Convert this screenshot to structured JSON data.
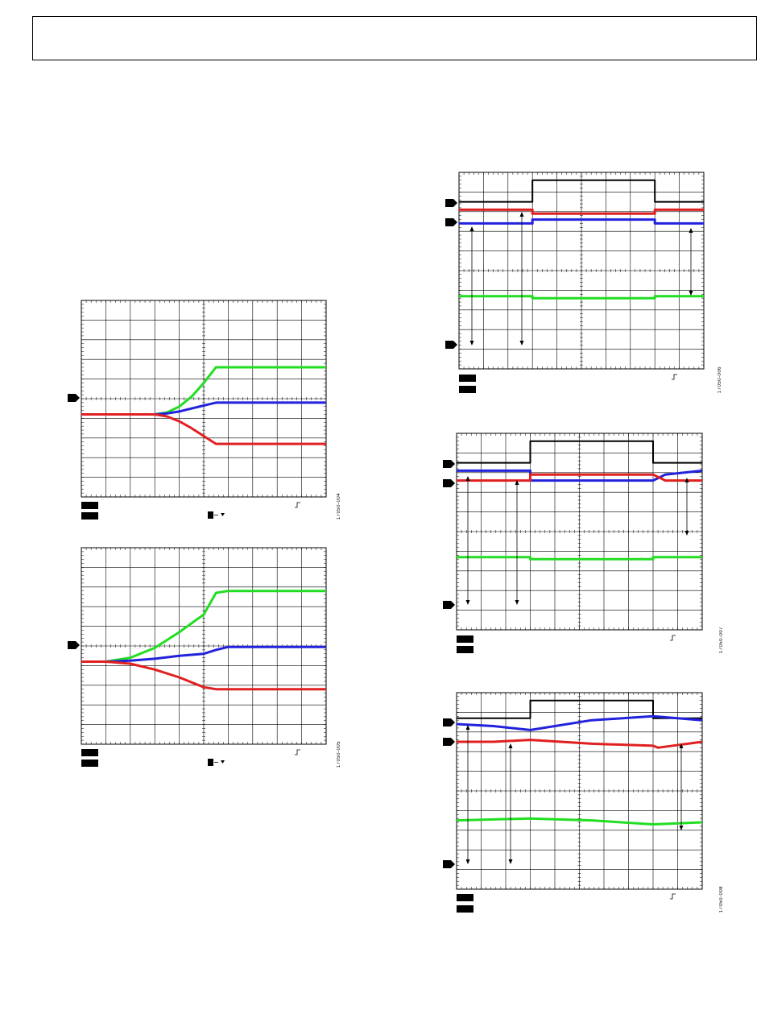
{
  "page": {
    "figure_ids": [
      "17050-004",
      "17050-005",
      "17050-006",
      "17050-007",
      "17050-008"
    ]
  },
  "colors": {
    "green": "#22dd22",
    "blue": "#2222dd",
    "red": "#e02020",
    "black": "#000000",
    "grid": "#000000"
  },
  "chart_data": [
    {
      "type": "line",
      "title": "",
      "grid": true,
      "x": [
        0,
        1,
        2,
        3,
        3.5,
        4,
        4.5,
        5,
        5.5,
        6,
        7,
        8,
        9,
        10
      ],
      "ylim": [
        0,
        10
      ],
      "xlim": [
        0,
        10
      ],
      "series": [
        {
          "color": "green",
          "values": [
            4.2,
            4.2,
            4.2,
            4.2,
            4.3,
            4.6,
            5.1,
            5.8,
            6.6,
            6.6,
            6.6,
            6.6,
            6.6,
            6.6
          ]
        },
        {
          "color": "blue",
          "values": [
            4.2,
            4.2,
            4.2,
            4.2,
            4.25,
            4.35,
            4.5,
            4.65,
            4.8,
            4.8,
            4.8,
            4.8,
            4.8,
            4.8
          ]
        },
        {
          "color": "red",
          "values": [
            4.2,
            4.2,
            4.2,
            4.2,
            4.1,
            3.85,
            3.5,
            3.1,
            2.7,
            2.7,
            2.7,
            2.7,
            2.7,
            2.7
          ]
        }
      ]
    },
    {
      "type": "line",
      "title": "",
      "grid": true,
      "x": [
        0,
        1,
        2,
        3,
        4,
        5,
        5.5,
        6,
        7,
        8,
        9,
        10
      ],
      "ylim": [
        0,
        10
      ],
      "xlim": [
        0,
        10
      ],
      "series": [
        {
          "color": "green",
          "values": [
            4.2,
            4.2,
            4.4,
            4.9,
            5.7,
            6.6,
            7.7,
            7.8,
            7.8,
            7.8,
            7.8,
            7.8
          ]
        },
        {
          "color": "blue",
          "values": [
            4.2,
            4.2,
            4.25,
            4.35,
            4.5,
            4.6,
            4.8,
            4.95,
            4.95,
            4.95,
            4.95,
            4.95
          ]
        },
        {
          "color": "red",
          "values": [
            4.2,
            4.2,
            4.1,
            3.8,
            3.4,
            2.9,
            2.8,
            2.8,
            2.8,
            2.8,
            2.8,
            2.8
          ]
        }
      ]
    },
    {
      "type": "line",
      "title": "",
      "grid": true,
      "xlim": [
        0,
        10
      ],
      "ylim": [
        0,
        10
      ],
      "series": [
        {
          "color": "black",
          "x": [
            0,
            3,
            3,
            8,
            8,
            10
          ],
          "values": [
            8.5,
            8.5,
            9.6,
            9.6,
            8.5,
            8.5
          ]
        },
        {
          "color": "red",
          "x": [
            0,
            3,
            3,
            8,
            8,
            10
          ],
          "values": [
            8.1,
            8.1,
            7.9,
            7.9,
            8.1,
            8.1
          ]
        },
        {
          "color": "blue",
          "x": [
            0,
            3,
            3,
            8,
            8,
            10
          ],
          "values": [
            7.4,
            7.4,
            7.6,
            7.6,
            7.4,
            7.4
          ]
        },
        {
          "color": "green",
          "x": [
            0,
            3,
            3,
            8,
            8,
            10
          ],
          "values": [
            3.7,
            3.7,
            3.6,
            3.6,
            3.7,
            3.7
          ]
        }
      ]
    },
    {
      "type": "line",
      "title": "",
      "grid": true,
      "xlim": [
        0,
        10
      ],
      "ylim": [
        0,
        10
      ],
      "series": [
        {
          "color": "black",
          "x": [
            0,
            3,
            3,
            8,
            8,
            10
          ],
          "values": [
            8.5,
            8.5,
            9.6,
            9.6,
            8.5,
            8.5
          ]
        },
        {
          "color": "blue",
          "x": [
            0,
            3,
            3,
            8,
            8.5,
            10
          ],
          "values": [
            8.1,
            8.1,
            7.6,
            7.6,
            7.9,
            8.1
          ]
        },
        {
          "color": "red",
          "x": [
            0,
            3,
            3,
            8,
            8.5,
            10
          ],
          "values": [
            7.6,
            7.6,
            7.9,
            7.9,
            7.6,
            7.6
          ]
        },
        {
          "color": "green",
          "x": [
            0,
            3,
            3,
            8,
            8,
            10
          ],
          "values": [
            3.7,
            3.7,
            3.6,
            3.6,
            3.7,
            3.7
          ]
        }
      ]
    },
    {
      "type": "line",
      "title": "",
      "grid": true,
      "xlim": [
        0,
        10
      ],
      "ylim": [
        0,
        10
      ],
      "series": [
        {
          "color": "black",
          "x": [
            0,
            3,
            3,
            8,
            8,
            10
          ],
          "values": [
            8.7,
            8.7,
            9.6,
            9.6,
            8.7,
            8.7
          ]
        },
        {
          "color": "blue",
          "x": [
            0,
            1.5,
            3,
            5.5,
            8,
            10
          ],
          "values": [
            8.4,
            8.3,
            8.1,
            8.6,
            8.8,
            8.6
          ]
        },
        {
          "color": "red",
          "x": [
            0,
            1.5,
            3,
            5.5,
            8,
            8.2,
            10
          ],
          "values": [
            7.5,
            7.5,
            7.6,
            7.4,
            7.3,
            7.2,
            7.5
          ]
        },
        {
          "color": "green",
          "x": [
            0,
            3,
            5.5,
            8,
            10
          ],
          "values": [
            3.5,
            3.6,
            3.5,
            3.3,
            3.4
          ]
        }
      ]
    }
  ]
}
